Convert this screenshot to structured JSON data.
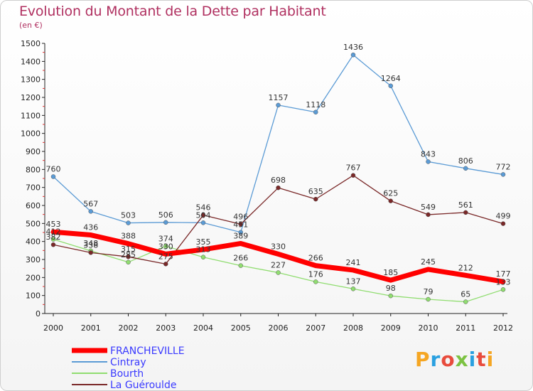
{
  "header": {
    "title": "Evolution du Montant de la Dette par Habitant",
    "subtitle": "(en €)"
  },
  "logo": {
    "text": "Proxiti",
    "colors": [
      "#f5a623",
      "#2aa0e0",
      "#e84c3d",
      "#7cc242",
      "#2aa0e0",
      "#e84c3d",
      "#f5a623"
    ]
  },
  "chart_data": {
    "type": "line",
    "title": "Evolution du Montant de la Dette par Habitant",
    "subtitle": "(en €)",
    "xlabel": "",
    "ylabel": "",
    "x": [
      "2000",
      "2001",
      "2002",
      "2003",
      "2004",
      "2005",
      "2006",
      "2007",
      "2008",
      "2009",
      "2010",
      "2011",
      "2012"
    ],
    "ylim": [
      0,
      1500
    ],
    "yticks": [
      0,
      100,
      200,
      300,
      400,
      500,
      600,
      700,
      800,
      900,
      1000,
      1100,
      1200,
      1300,
      1400,
      1500
    ],
    "grid": false,
    "legend": "bottom-left",
    "series": [
      {
        "name": "FRANCHEVILLE",
        "color": "#ff0000",
        "width": 7,
        "values": [
          453,
          436,
          388,
          330,
          355,
          389,
          330,
          266,
          241,
          185,
          245,
          212,
          177
        ]
      },
      {
        "name": "Cintray",
        "color": "#5b9bd5",
        "width": 1.3,
        "values": [
          760,
          567,
          503,
          506,
          504,
          451,
          1157,
          1118,
          1436,
          1264,
          843,
          806,
          772
        ]
      },
      {
        "name": "Bourth",
        "color": "#90dd70",
        "width": 1.3,
        "values": [
          412,
          348,
          285,
          374,
          313,
          266,
          227,
          176,
          137,
          98,
          79,
          65,
          133
        ]
      },
      {
        "name": "La Guéroulde",
        "color": "#7a2828",
        "width": 1.3,
        "values": [
          382,
          338,
          315,
          275,
          546,
          496,
          698,
          635,
          767,
          625,
          549,
          561,
          499
        ]
      }
    ]
  }
}
